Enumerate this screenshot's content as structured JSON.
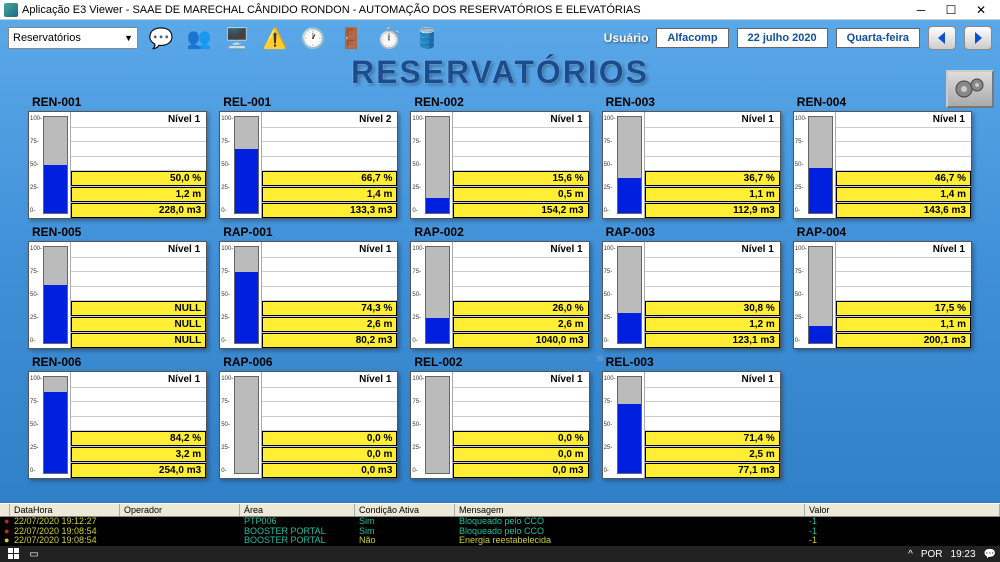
{
  "window": {
    "title": "Aplicação E3 Viewer - SAAE DE MARECHAL CÂNDIDO RONDON - AUTOMAÇÃO DOS RESERVATÓRIOS E ELEVATÓRIAS"
  },
  "toolbar": {
    "dropdown_value": "Reservatórios",
    "user_label": "Usuário",
    "user_value": "Alfacomp",
    "date": "22 julho 2020",
    "weekday": "Quarta-feira"
  },
  "page_title": "RESERVATÓRIOS",
  "colors": {
    "bg_top": "#5aa8e8",
    "bg_bottom": "#3080c8",
    "title_color": "#1a4d8f",
    "value_box_bg": "#ffee33",
    "tank_empty": "#bbbbbb",
    "tank_fill": "#0020e0",
    "log_bg": "#000000",
    "log_red": "#d02020",
    "log_text_teal": "#20c0a0",
    "log_text_yellow": "#d0d030"
  },
  "scale_ticks": [
    "100",
    "75",
    "50",
    "25",
    "0"
  ],
  "reservoirs": [
    {
      "id": "REN-001",
      "level_label": "Nível 1",
      "fill_pct": 50.0,
      "percent": "50,0 %",
      "depth": "1,2 m",
      "volume": "228,0 m3"
    },
    {
      "id": "REL-001",
      "level_label": "Nível 2",
      "fill_pct": 66.7,
      "percent": "66,7 %",
      "depth": "1,4 m",
      "volume": "133,3 m3"
    },
    {
      "id": "REN-002",
      "level_label": "Nível 1",
      "fill_pct": 15.6,
      "percent": "15,6 %",
      "depth": "0,5 m",
      "volume": "154,2 m3"
    },
    {
      "id": "REN-003",
      "level_label": "Nível 1",
      "fill_pct": 36.7,
      "percent": "36,7 %",
      "depth": "1,1 m",
      "volume": "112,9 m3"
    },
    {
      "id": "REN-004",
      "level_label": "Nível 1",
      "fill_pct": 46.7,
      "percent": "46,7 %",
      "depth": "1,4 m",
      "volume": "143,6 m3"
    },
    {
      "id": "REN-005",
      "level_label": "Nível 1",
      "fill_pct": 60.0,
      "percent": "NULL",
      "depth": "NULL",
      "volume": "NULL"
    },
    {
      "id": "RAP-001",
      "level_label": "Nível 1",
      "fill_pct": 74.3,
      "percent": "74,3 %",
      "depth": "2,6 m",
      "volume": "80,2 m3"
    },
    {
      "id": "RAP-002",
      "level_label": "Nível 1",
      "fill_pct": 26.0,
      "percent": "26,0 %",
      "depth": "2,6 m",
      "volume": "1040,0 m3"
    },
    {
      "id": "RAP-003",
      "level_label": "Nível 1",
      "fill_pct": 30.8,
      "percent": "30,8 %",
      "depth": "1,2 m",
      "volume": "123,1 m3"
    },
    {
      "id": "RAP-004",
      "level_label": "Nível 1",
      "fill_pct": 17.5,
      "percent": "17,5 %",
      "depth": "1,1 m",
      "volume": "200,1 m3"
    },
    {
      "id": "REN-006",
      "level_label": "Nível 1",
      "fill_pct": 84.2,
      "percent": "84,2 %",
      "depth": "3,2 m",
      "volume": "254,0 m3"
    },
    {
      "id": "RAP-006",
      "level_label": "Nível 1",
      "fill_pct": 0.0,
      "percent": "0,0 %",
      "depth": "0,0 m",
      "volume": "0,0 m3"
    },
    {
      "id": "REL-002",
      "level_label": "Nível 1",
      "fill_pct": 0.0,
      "percent": "0,0 %",
      "depth": "0,0 m",
      "volume": "0,0 m3"
    },
    {
      "id": "REL-003",
      "level_label": "Nível 1",
      "fill_pct": 71.4,
      "percent": "71,4 %",
      "depth": "2,5 m",
      "volume": "77,1 m3"
    }
  ],
  "log": {
    "headers": {
      "datetime": "DataHora",
      "operator": "Operador",
      "area": "Área",
      "cond": "Condição Ativa",
      "msg": "Mensagem",
      "value": "Valor"
    },
    "rows": [
      {
        "bullet_color": "#d02020",
        "datetime": "22/07/2020 19:12:27",
        "operator": "",
        "area": "PTP006",
        "area_color": "#20c0a0",
        "cond": "Sim",
        "cond_color": "#20c0a0",
        "msg": "Bloqueado pelo CCO",
        "msg_color": "#20c0a0",
        "value": "-1",
        "value_color": "#20c0a0"
      },
      {
        "bullet_color": "#d02020",
        "datetime": "22/07/2020 19:08:54",
        "operator": "",
        "area": "BOOSTER PORTAL",
        "area_color": "#20c0a0",
        "cond": "Sim",
        "cond_color": "#20c0a0",
        "msg": "Bloqueado pelo CCO",
        "msg_color": "#20c0a0",
        "value": "-1",
        "value_color": "#20c0a0"
      },
      {
        "bullet_color": "#d0d030",
        "datetime": "22/07/2020 19:08:54",
        "operator": "",
        "area": "BOOSTER PORTAL",
        "area_color": "#20c0a0",
        "cond": "Não",
        "cond_color": "#d0d030",
        "msg": "Energia reestabelecida",
        "msg_color": "#d0d030",
        "value": "-1",
        "value_color": "#d0d030"
      }
    ]
  },
  "taskbar": {
    "lang": "POR",
    "time": "19:23"
  }
}
